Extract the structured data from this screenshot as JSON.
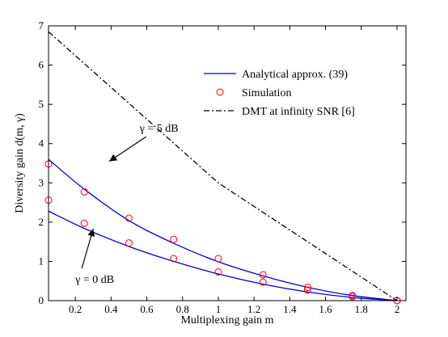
{
  "chart_data": {
    "type": "line",
    "title": "",
    "xlabel": "Multiplexing gain m",
    "ylabel": "Diversity gain d(m, γ)",
    "xlim": [
      0.05,
      2.05
    ],
    "ylim": [
      0,
      7
    ],
    "xticks": [
      0.2,
      0.4,
      0.6,
      0.8,
      1,
      1.2,
      1.4,
      1.6,
      1.8,
      2
    ],
    "xtick_labels": [
      "0.2",
      "0.4",
      "0.6",
      "0.8",
      "1",
      "1.2",
      "1.4",
      "1.6",
      "1.8",
      "2"
    ],
    "yticks": [
      0,
      1,
      2,
      3,
      4,
      5,
      6,
      7
    ],
    "ytick_labels": [
      "0",
      "1",
      "2",
      "3",
      "4",
      "5",
      "6",
      "7"
    ],
    "grid": false,
    "legend_position": "top-right",
    "colors": {
      "analytical": "#0000cc",
      "simulation": "#ff0000",
      "dmt": "#000000"
    },
    "legend": [
      {
        "key": "analytical",
        "label": "Analytical approx. (39)",
        "style": "solid-line"
      },
      {
        "key": "simulation",
        "label": "Simulation",
        "style": "circle-marker"
      },
      {
        "key": "dmt",
        "label": "DMT at infinity SNR [6]",
        "style": "dash-dot-line"
      }
    ],
    "series": [
      {
        "key": "analytical",
        "group": "γ = 5 dB",
        "x": [
          0.05,
          0.25,
          0.5,
          0.75,
          1.0,
          1.25,
          1.5,
          1.75,
          2.0
        ],
        "y": [
          3.6,
          2.84,
          2.04,
          1.46,
          0.99,
          0.63,
          0.34,
          0.13,
          0.0
        ]
      },
      {
        "key": "analytical",
        "group": "γ = 0 dB",
        "x": [
          0.05,
          0.25,
          0.5,
          0.75,
          1.0,
          1.25,
          1.5,
          1.75,
          2.0
        ],
        "y": [
          2.28,
          1.84,
          1.38,
          1.0,
          0.68,
          0.42,
          0.22,
          0.08,
          0.0
        ]
      },
      {
        "key": "simulation",
        "group": "γ = 5 dB",
        "x": [
          0.05,
          0.25,
          0.5,
          0.75,
          1.0,
          1.25,
          1.5,
          1.75,
          2.0
        ],
        "y": [
          3.48,
          2.77,
          2.1,
          1.56,
          1.07,
          0.66,
          0.34,
          0.13,
          0.0
        ]
      },
      {
        "key": "simulation",
        "group": "γ = 0 dB",
        "x": [
          0.05,
          0.25,
          0.5,
          0.75,
          1.0,
          1.25,
          1.5,
          1.75,
          2.0
        ],
        "y": [
          2.56,
          1.97,
          1.47,
          1.07,
          0.73,
          0.47,
          0.27,
          0.1,
          0.0
        ]
      },
      {
        "key": "dmt",
        "group": "DMT",
        "x": [
          0.05,
          1.0,
          2.0
        ],
        "y": [
          6.85,
          3.0,
          0.0
        ]
      }
    ],
    "annotations": [
      {
        "text": "γ = 5 dB",
        "target_series_group": "γ = 5 dB",
        "target": [
          0.39,
          3.55
        ],
        "label_at": [
          0.56,
          4.3
        ]
      },
      {
        "text": "γ = 0 dB",
        "target_series_group": "γ = 0 dB",
        "target": [
          0.3,
          1.83
        ],
        "label_at": [
          0.2,
          0.45
        ]
      }
    ]
  }
}
